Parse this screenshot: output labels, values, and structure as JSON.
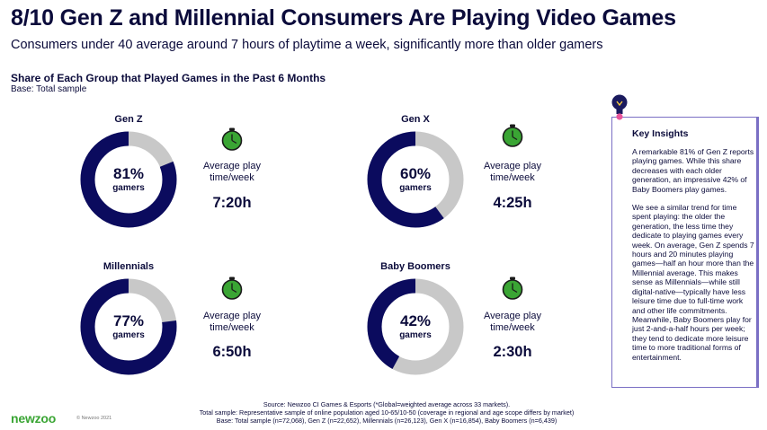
{
  "header": {
    "title": "8/10 Gen Z and Millennial Consumers Are Playing Video Games",
    "subtitle": "Consumers under 40 average around 7 hours of playtime a week, significantly more than older gamers",
    "section_title": "Share of Each Group that Played Games in the Past 6 Months",
    "base": "Base: Total sample"
  },
  "labels": {
    "gamers": "gamers",
    "avg_line1": "Average play",
    "avg_line2": "time/week"
  },
  "colors": {
    "ring_filled": "#0b0b5e",
    "ring_remaining": "#c8c8c8",
    "clock_green": "#3aa534",
    "insight_border": "#7a6fc4"
  },
  "chart_data": {
    "type": "donut",
    "groups": [
      {
        "name": "Gen Z",
        "percent": 81,
        "percent_label": "81%",
        "avg_play_time": "7:20h"
      },
      {
        "name": "Gen X",
        "percent": 60,
        "percent_label": "60%",
        "avg_play_time": "4:25h"
      },
      {
        "name": "Millennials",
        "percent": 77,
        "percent_label": "77%",
        "avg_play_time": "6:50h"
      },
      {
        "name": "Baby Boomers",
        "percent": 42,
        "percent_label": "42%",
        "avg_play_time": "2:30h"
      }
    ]
  },
  "insights": {
    "title": "Key Insights",
    "paragraphs": [
      "A remarkable 81% of Gen Z reports playing games. While this share decreases with each older generation, an impressive 42% of Baby Boomers play games.",
      "We see a similar trend for time spent playing: the older the generation, the less time they dedicate to playing games every week. On average, Gen Z spends 7 hours and 20 minutes playing games—half an hour more than the Millennial average. This makes sense as Millennials—while still digital-native—typically have less leisure time due to full-time work and other life commitments. Meanwhile, Baby Boomers play for just 2-and-a-half hours per week; they tend to dedicate more leisure time to more traditional forms of entertainment."
    ]
  },
  "footer": {
    "lines": [
      "Source: Newzoo CI Games & Esports (*Global=weighted average across 33 markets).",
      "Total sample: Representative sample of online population aged 10-65/10-50 (coverage in regional and age scope differs by market)",
      "Base: Total sample (n=72,068), Gen Z (n=22,652), Millennials (n=26,123), Gen X (n=16,854), Baby Boomers (n=6,439)"
    ],
    "logo": "newzoo",
    "copyright": "© Newzoo 2021"
  }
}
